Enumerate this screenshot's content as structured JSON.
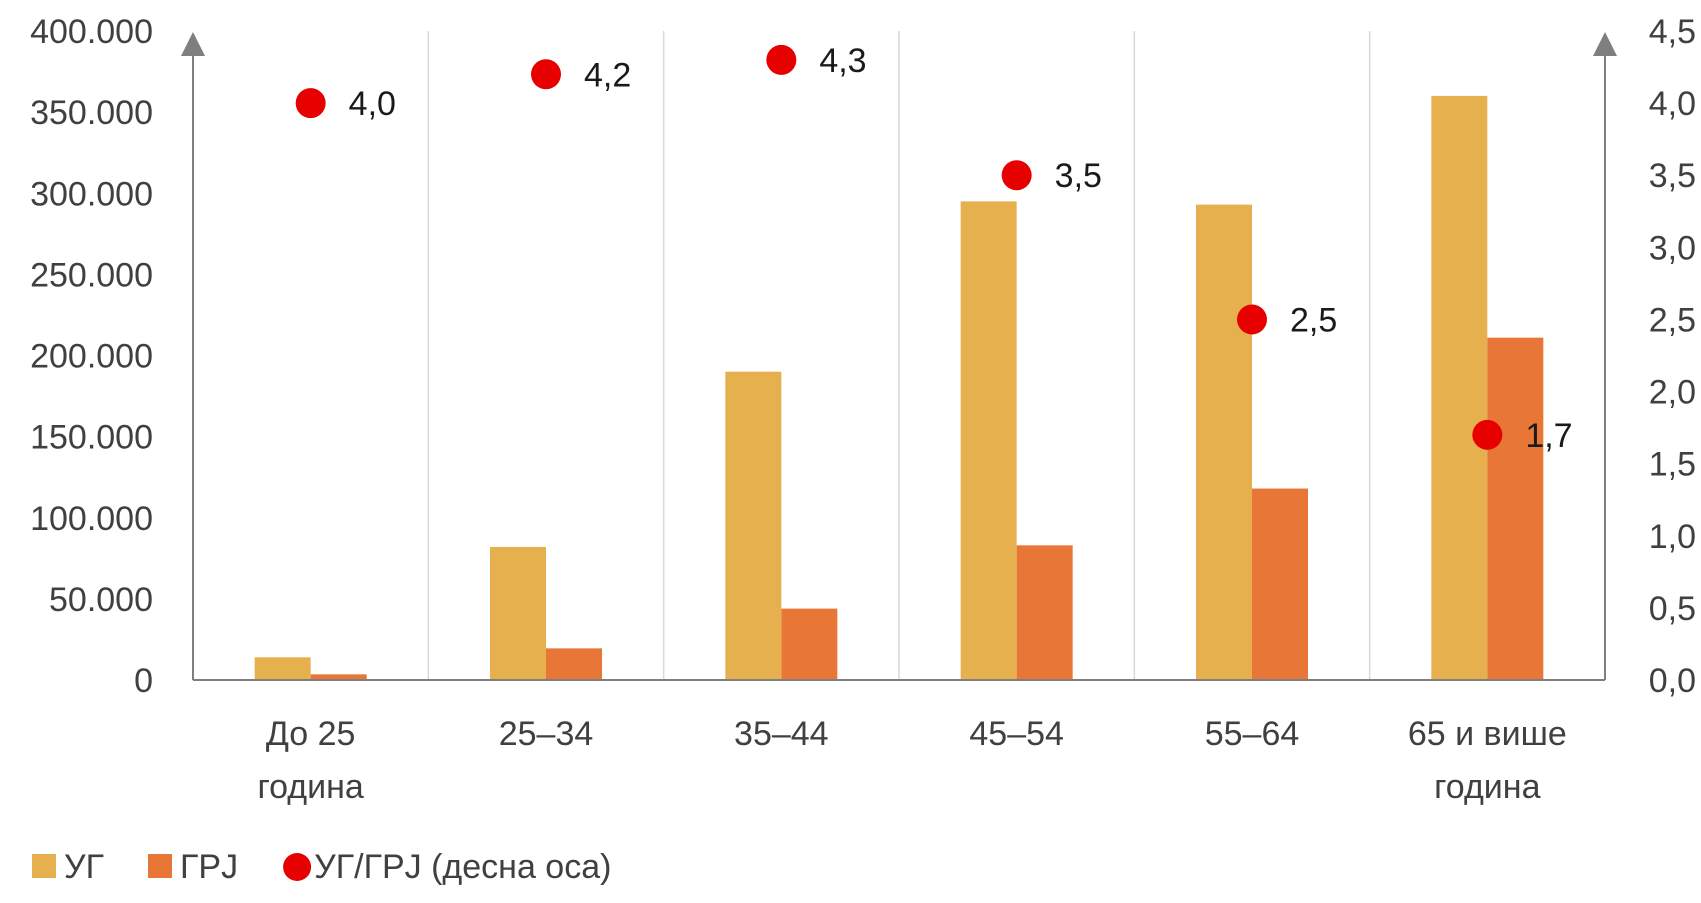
{
  "chart_data": {
    "type": "bar",
    "categories": [
      [
        "До 25",
        "година"
      ],
      [
        "25–34"
      ],
      [
        "35–44"
      ],
      [
        "45–54"
      ],
      [
        "55–64"
      ],
      [
        "65 и више",
        "година"
      ]
    ],
    "series": [
      {
        "name": "УГ",
        "type": "bar",
        "axis": "left",
        "color": "#E6B04F",
        "values": [
          14000,
          82000,
          190000,
          295000,
          293000,
          360000
        ]
      },
      {
        "name": "ГРЈ",
        "type": "bar",
        "axis": "left",
        "color": "#E87636",
        "values": [
          3500,
          19500,
          44000,
          83000,
          118000,
          211000
        ]
      },
      {
        "name": "УГ/ГРЈ (десна оса)",
        "type": "scatter",
        "axis": "right",
        "color": "#E60000",
        "values": [
          4.0,
          4.2,
          4.3,
          3.5,
          2.5,
          1.7
        ],
        "labels": [
          "4,0",
          "4,2",
          "4,3",
          "3,5",
          "2,5",
          "1,7"
        ]
      }
    ],
    "left_axis": {
      "ylim": [
        0,
        400000
      ],
      "ticks": [
        0,
        50000,
        100000,
        150000,
        200000,
        250000,
        300000,
        350000,
        400000
      ],
      "tick_labels": [
        "0",
        "50.000",
        "100.000",
        "150.000",
        "200.000",
        "250.000",
        "300.000",
        "350.000",
        "400.000"
      ]
    },
    "right_axis": {
      "ylim": [
        0,
        4.5
      ],
      "ticks": [
        0,
        0.5,
        1.0,
        1.5,
        2.0,
        2.5,
        3.0,
        3.5,
        4.0,
        4.5
      ],
      "tick_labels": [
        "0,0",
        "0,5",
        "1,0",
        "1,5",
        "2,0",
        "2,5",
        "3,0",
        "3,5",
        "4,0",
        "4,5"
      ]
    },
    "grid": "vertical",
    "legend_position": "bottom-left"
  }
}
